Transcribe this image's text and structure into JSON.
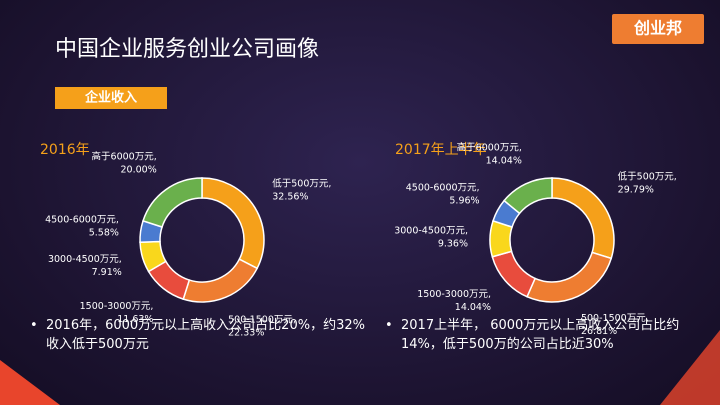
{
  "header": {
    "title": "中国企业服务创业公司画像",
    "tag": "企业收入",
    "logo": "创业邦"
  },
  "chart_data": [
    {
      "type": "pie",
      "title": "2016年",
      "categories": [
        "低于500万元,",
        "500-1500万元,",
        "1500-3000万元,",
        "3000-4500万元,",
        "4500-6000万元,",
        "高于6000万元,"
      ],
      "values": [
        32.56,
        22.33,
        11.63,
        7.91,
        5.58,
        20.0
      ],
      "value_labels": [
        "32.56%",
        "22.33%",
        "11.63%",
        "7.91%",
        "5.58%",
        "20.00%"
      ],
      "colors": [
        "#f5a01a",
        "#ee7d31",
        "#e84c3d",
        "#f9d71c",
        "#4a7bd0",
        "#6ab04c"
      ]
    },
    {
      "type": "pie",
      "title": "2017年上半年",
      "categories": [
        "低于500万元,",
        "500-1500万元,",
        "1500-3000万元,",
        "3000-4500万元,",
        "4500-6000万元,",
        "高于6000万元,"
      ],
      "values": [
        29.79,
        26.81,
        14.04,
        9.36,
        5.96,
        14.04
      ],
      "value_labels": [
        "29.79%",
        "26.81%",
        "14.04%",
        "9.36%",
        "5.96%",
        "14.04%"
      ],
      "colors": [
        "#f5a01a",
        "#ee7d31",
        "#e84c3d",
        "#f9d71c",
        "#4a7bd0",
        "#6ab04c"
      ]
    }
  ],
  "bullets": [
    "2016年，6000万元以上高收入公司占比20%，约32%收入低于500万元",
    "2017上半年， 6000万元以上高收入公司占比约14%，低于500万的公司占比近30%"
  ]
}
